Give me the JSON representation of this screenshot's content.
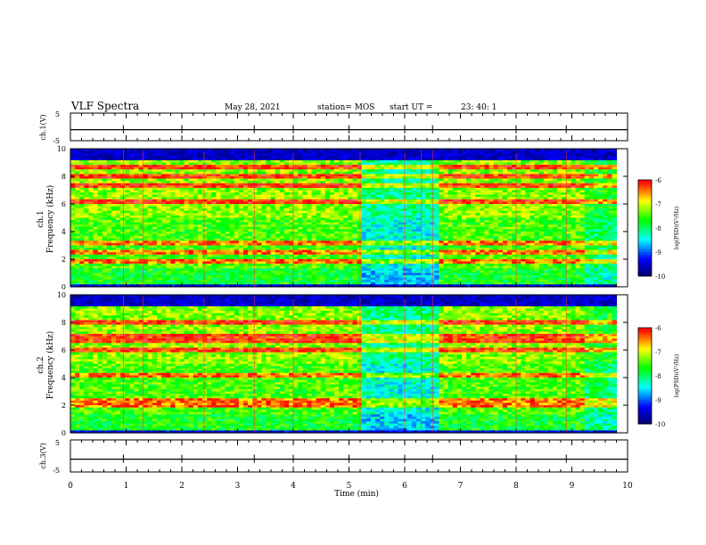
{
  "header": {
    "title": "VLF Spectra",
    "date": "May 28, 2021",
    "station": "station= MOS",
    "start_label": "start  UT  =",
    "start_time": "23: 40: 1"
  },
  "chart_data": [
    {
      "type": "line",
      "panel": "ch1-waveform",
      "ylabel": "ch.1(V)",
      "ylim": [
        -5,
        5
      ],
      "yticks": [
        "5",
        "-5"
      ],
      "xlim": [
        0,
        10
      ],
      "series": [
        {
          "values": [
            -1,
            -1
          ],
          "x": [
            0,
            10
          ]
        }
      ]
    },
    {
      "type": "heatmap",
      "panel": "ch1-spectrogram",
      "ylabel_top": "ch.1",
      "ylabel": "Frequency  (kHz)",
      "ylim": [
        0,
        10
      ],
      "yticks": [
        "0",
        "2",
        "4",
        "6",
        "8",
        "10"
      ],
      "xlim": [
        0,
        9.8
      ],
      "colorbar": {
        "range": [
          -10,
          -6
        ],
        "ticks": [
          "-6",
          "-7",
          "-8",
          "-9",
          "-10"
        ],
        "label": "log(PSD)(V²/Hz)"
      }
    },
    {
      "type": "heatmap",
      "panel": "ch2-spectrogram",
      "ylabel_top": "ch.2",
      "ylabel": "Frequency  (kHz)",
      "ylim": [
        0,
        10
      ],
      "yticks": [
        "0",
        "2",
        "4",
        "6",
        "8",
        "10"
      ],
      "xlim": [
        0,
        9.8
      ],
      "colorbar": {
        "range": [
          -10,
          -6
        ],
        "ticks": [
          "-6",
          "-7",
          "-8",
          "-9",
          "-10"
        ],
        "label": "log(PSD)(V²/Hz)"
      }
    },
    {
      "type": "line",
      "panel": "ch3-waveform",
      "ylabel": "ch.3(V)",
      "ylim": [
        -5,
        5
      ],
      "yticks": [
        "5",
        "-5"
      ],
      "xlim": [
        0,
        10
      ],
      "series": [
        {
          "values": [
            -1,
            -1
          ],
          "x": [
            0,
            10
          ]
        }
      ]
    }
  ],
  "xaxis": {
    "label": "Time  (min)",
    "ticks": [
      "0",
      "1",
      "2",
      "3",
      "4",
      "5",
      "6",
      "7",
      "8",
      "9",
      "10"
    ],
    "range": [
      0,
      10
    ]
  },
  "colors": {
    "background": "#ffffff",
    "axis": "#000000",
    "colormap": [
      "#00005a",
      "#0000ff",
      "#00ffff",
      "#00ff00",
      "#ffff00",
      "#ff0000",
      "#ffffff"
    ]
  }
}
